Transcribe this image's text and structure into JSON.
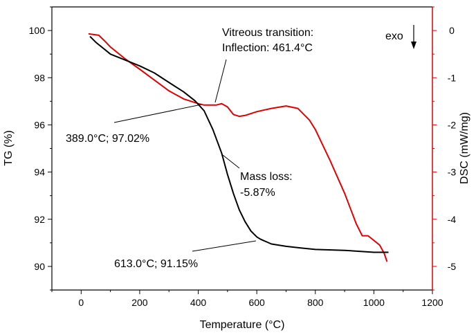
{
  "chart_data": {
    "type": "line",
    "xlabel": "Temperature (°C)",
    "ylabel_left": "TG (%)",
    "ylabel_right": "DSC (mW/mg)",
    "xlim": [
      -100,
      1200
    ],
    "ylim_left": [
      89,
      101
    ],
    "ylim_right": [
      -5.5,
      0.5
    ],
    "x_ticks": [
      0,
      200,
      400,
      600,
      800,
      1000,
      1200
    ],
    "y_left_ticks": [
      90,
      92,
      94,
      96,
      98,
      100
    ],
    "y_right_ticks": [
      0,
      -1,
      -2,
      -3,
      -4,
      -5
    ],
    "grid": false,
    "colors": {
      "tg": "#000000",
      "dsc": "#e00000"
    },
    "series": [
      {
        "axis": "left",
        "color": "#000000",
        "x": [
          30,
          50,
          80,
          100,
          150,
          200,
          250,
          300,
          350,
          389,
          420,
          450,
          480,
          500,
          520,
          540,
          560,
          580,
          600,
          613,
          650,
          700,
          750,
          800,
          900,
          1000,
          1050
        ],
        "y": [
          99.75,
          99.5,
          99.2,
          99.0,
          98.75,
          98.5,
          98.2,
          97.8,
          97.4,
          97.02,
          96.6,
          95.8,
          94.8,
          93.9,
          93.1,
          92.4,
          91.9,
          91.5,
          91.25,
          91.15,
          90.95,
          90.85,
          90.78,
          90.72,
          90.68,
          90.6,
          90.6
        ]
      },
      {
        "axis": "right",
        "color": "#e00000",
        "x": [
          25,
          60,
          80,
          100,
          150,
          200,
          250,
          300,
          350,
          400,
          420,
          440,
          461.4,
          480,
          500,
          520,
          540,
          560,
          600,
          650,
          700,
          740,
          780,
          800,
          850,
          900,
          940,
          960,
          980,
          1000,
          1020,
          1035,
          1045
        ],
        "y": [
          -0.07,
          -0.1,
          -0.22,
          -0.35,
          -0.6,
          -0.82,
          -1.05,
          -1.28,
          -1.45,
          -1.55,
          -1.58,
          -1.58,
          -1.58,
          -1.55,
          -1.62,
          -1.78,
          -1.82,
          -1.8,
          -1.72,
          -1.65,
          -1.6,
          -1.65,
          -1.9,
          -2.1,
          -2.75,
          -3.45,
          -4.1,
          -4.35,
          -4.35,
          -4.45,
          -4.55,
          -4.72,
          -4.9
        ]
      }
    ],
    "annotations": {
      "vitreous_line1": "Vitreous transition:",
      "vitreous_line2": "Inflection: 461.4°C",
      "tg_point1": "389.0°C; 97.02%",
      "mass_loss_line1": "Mass loss:",
      "mass_loss_line2": "-5.87%",
      "tg_point2": "613.0°C; 91.15%",
      "exo": "exo"
    }
  }
}
